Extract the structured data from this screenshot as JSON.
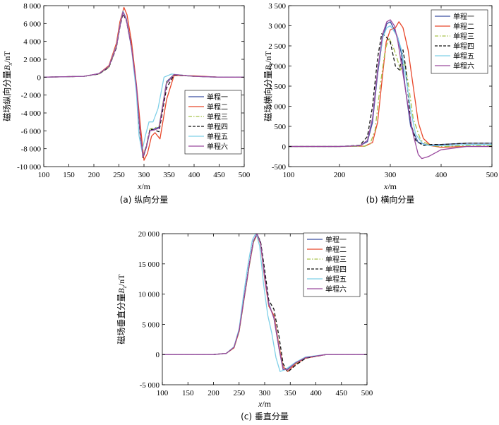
{
  "chart_data": [
    {
      "type": "line",
      "caption": "(a) 纵向分量",
      "xlabel_var": "x",
      "xlabel_unit": "/m",
      "ylabel_prefix": "磁场纵向分量",
      "ylabel_var": "B",
      "ylabel_sub": "x",
      "ylabel_unit": "/nT",
      "xlim": [
        100,
        500
      ],
      "ylim": [
        -10000,
        8000
      ],
      "xticks": [
        100,
        150,
        200,
        250,
        300,
        350,
        400,
        450,
        500
      ],
      "xtick_labels": [
        "100",
        "150",
        "200",
        "250",
        "300",
        "350",
        "400",
        "450",
        "500"
      ],
      "yticks": [
        8000,
        6000,
        4000,
        2000,
        0,
        -2000,
        -4000,
        -6000,
        -8000,
        -10000
      ],
      "ytick_labels": [
        "8 000",
        "6 000",
        "4 000",
        "2 000",
        "0",
        "-2 000",
        "-4 000",
        "-6 000",
        "-8 000",
        "-10 000"
      ],
      "legend_position": "lower-right",
      "series": [
        {
          "name": "单程一",
          "color": "#3a4fa0",
          "dash": "solid",
          "x": [
            100,
            180,
            210,
            230,
            245,
            252,
            258,
            265,
            275,
            285,
            292,
            298,
            305,
            312,
            320,
            330,
            345,
            360,
            400,
            450,
            500
          ],
          "y": [
            0,
            100,
            400,
            1200,
            3500,
            5800,
            7400,
            6500,
            3500,
            -1000,
            -6000,
            -9000,
            -7800,
            -6000,
            -5800,
            -5600,
            -500,
            300,
            100,
            0,
            0
          ]
        },
        {
          "name": "单程二",
          "color": "#e8472a",
          "dash": "solid",
          "x": [
            100,
            180,
            210,
            230,
            245,
            252,
            260,
            266,
            275,
            285,
            293,
            300,
            307,
            315,
            322,
            332,
            345,
            360,
            400,
            450,
            500
          ],
          "y": [
            0,
            100,
            400,
            1300,
            3800,
            6200,
            7800,
            7000,
            4000,
            -800,
            -5500,
            -9300,
            -8500,
            -6600,
            -6200,
            -6900,
            -2500,
            200,
            150,
            0,
            0
          ]
        },
        {
          "name": "单程三",
          "color": "#a6c24a",
          "dash": "dashdot",
          "x": [
            100,
            180,
            210,
            230,
            245,
            252,
            258,
            265,
            275,
            285,
            292,
            298,
            305,
            312,
            320,
            330,
            345,
            360,
            400,
            450,
            500
          ],
          "y": [
            0,
            100,
            350,
            1100,
            3300,
            5700,
            7300,
            6400,
            3400,
            -1100,
            -6100,
            -8800,
            -7600,
            -5800,
            -5700,
            -5500,
            -600,
            300,
            100,
            0,
            0
          ]
        },
        {
          "name": "单程四",
          "color": "#111111",
          "dash": "dashed",
          "x": [
            100,
            180,
            210,
            230,
            245,
            252,
            258,
            265,
            275,
            285,
            292,
            298,
            305,
            312,
            320,
            330,
            345,
            360,
            400,
            450,
            500
          ],
          "y": [
            0,
            100,
            350,
            1100,
            3300,
            5600,
            7100,
            6300,
            3300,
            -1200,
            -6200,
            -9000,
            -7700,
            -5800,
            -5900,
            -6100,
            -1200,
            250,
            100,
            0,
            0
          ]
        },
        {
          "name": "单程五",
          "color": "#7fd0e8",
          "dash": "solid",
          "x": [
            100,
            180,
            210,
            230,
            245,
            252,
            258,
            265,
            275,
            285,
            290,
            296,
            303,
            310,
            318,
            328,
            340,
            355,
            400,
            450,
            500
          ],
          "y": [
            0,
            100,
            400,
            1200,
            3500,
            5800,
            7400,
            6400,
            3200,
            -1800,
            -6500,
            -8300,
            -6500,
            -5000,
            -5000,
            -3500,
            0,
            350,
            100,
            0,
            0
          ]
        },
        {
          "name": "单程六",
          "color": "#9a4a9e",
          "dash": "solid",
          "x": [
            100,
            180,
            210,
            230,
            245,
            252,
            258,
            265,
            275,
            285,
            292,
            298,
            305,
            312,
            320,
            330,
            345,
            360,
            400,
            450,
            500
          ],
          "y": [
            0,
            100,
            400,
            1200,
            3400,
            5700,
            7300,
            6400,
            3300,
            -1000,
            -6000,
            -8900,
            -7700,
            -6000,
            -5900,
            -5700,
            -700,
            300,
            100,
            0,
            0
          ]
        }
      ]
    },
    {
      "type": "line",
      "caption": "(b) 横向分量",
      "xlabel_var": "x",
      "xlabel_unit": "/m",
      "ylabel_prefix": "磁场横向分量",
      "ylabel_var": "B",
      "ylabel_sub": "y",
      "ylabel_unit": "/nT",
      "xlim": [
        100,
        500
      ],
      "ylim": [
        -500,
        3500
      ],
      "xticks": [
        100,
        200,
        300,
        400,
        500
      ],
      "xtick_labels": [
        "100",
        "200",
        "300",
        "400",
        "500"
      ],
      "yticks": [
        3500,
        3000,
        2500,
        2000,
        1500,
        1000,
        500,
        0,
        -500
      ],
      "ytick_labels": [
        "3 500",
        "3 000",
        "2 500",
        "2 000",
        "1 500",
        "1 000",
        "500",
        "0",
        "-500"
      ],
      "legend_position": "top-right",
      "series": [
        {
          "name": "单程一",
          "color": "#3a4fa0",
          "dash": "solid",
          "x": [
            100,
            200,
            240,
            255,
            265,
            275,
            285,
            293,
            300,
            308,
            315,
            322,
            330,
            340,
            355,
            375,
            400,
            450,
            500
          ],
          "y": [
            0,
            0,
            20,
            120,
            600,
            1800,
            2700,
            3050,
            3100,
            2900,
            2700,
            2300,
            1400,
            500,
            100,
            30,
            50,
            80,
            80
          ]
        },
        {
          "name": "单程二",
          "color": "#e8472a",
          "dash": "solid",
          "x": [
            100,
            200,
            250,
            265,
            275,
            285,
            292,
            300,
            310,
            317,
            325,
            335,
            345,
            355,
            365,
            380,
            400,
            450,
            500
          ],
          "y": [
            0,
            0,
            10,
            100,
            600,
            1800,
            2600,
            2900,
            2950,
            3100,
            2950,
            2400,
            1500,
            600,
            200,
            20,
            -20,
            0,
            0
          ]
        },
        {
          "name": "单程三",
          "color": "#a6c24a",
          "dash": "dashdot",
          "x": [
            100,
            200,
            250,
            260,
            270,
            280,
            290,
            297,
            305,
            313,
            320,
            328,
            335,
            345,
            360,
            380,
            400,
            450,
            500
          ],
          "y": [
            0,
            0,
            5,
            60,
            400,
            1500,
            2400,
            2700,
            2500,
            2200,
            1900,
            2100,
            1600,
            700,
            150,
            20,
            0,
            20,
            20
          ]
        },
        {
          "name": "单程四",
          "color": "#111111",
          "dash": "dashed",
          "x": [
            100,
            200,
            240,
            255,
            265,
            275,
            283,
            290,
            300,
            310,
            318,
            325,
            330,
            340,
            350,
            365,
            380,
            400,
            450,
            500
          ],
          "y": [
            0,
            0,
            30,
            250,
            1000,
            2200,
            2800,
            2750,
            2600,
            2000,
            1900,
            2400,
            2000,
            600,
            150,
            20,
            50,
            50,
            80,
            80
          ]
        },
        {
          "name": "单程五",
          "color": "#7fd0e8",
          "dash": "solid",
          "x": [
            100,
            200,
            240,
            255,
            265,
            275,
            285,
            293,
            300,
            308,
            315,
            322,
            330,
            340,
            350,
            365,
            380,
            400,
            450,
            500
          ],
          "y": [
            0,
            0,
            20,
            150,
            700,
            1900,
            2700,
            2950,
            3000,
            2850,
            2700,
            2400,
            1800,
            900,
            300,
            50,
            20,
            20,
            50,
            50
          ]
        },
        {
          "name": "单程六",
          "color": "#9a4a9e",
          "dash": "solid",
          "x": [
            100,
            200,
            240,
            255,
            265,
            275,
            285,
            293,
            300,
            308,
            315,
            325,
            335,
            345,
            355,
            362,
            375,
            400,
            450,
            500
          ],
          "y": [
            0,
            0,
            20,
            150,
            700,
            1900,
            2800,
            3100,
            3150,
            3000,
            2600,
            1800,
            1000,
            300,
            -200,
            -300,
            -250,
            -80,
            0,
            0
          ]
        }
      ]
    },
    {
      "type": "line",
      "caption": "(c) 垂直分量",
      "xlabel_var": "x",
      "xlabel_unit": "/m",
      "ylabel_prefix": "磁场垂直分量",
      "ylabel_var": "B",
      "ylabel_sub": "z",
      "ylabel_unit": "/nT",
      "xlim": [
        100,
        500
      ],
      "ylim": [
        -5000,
        20000
      ],
      "xticks": [
        100,
        150,
        200,
        250,
        300,
        350,
        400,
        450,
        500
      ],
      "xtick_labels": [
        "100",
        "150",
        "200",
        "250",
        "300",
        "350",
        "400",
        "450",
        "500"
      ],
      "yticks": [
        20000,
        15000,
        10000,
        5000,
        0,
        -5000
      ],
      "ytick_labels": [
        "20 000",
        "15 000",
        "10 000",
        "5 000",
        "0",
        "-5 000"
      ],
      "legend_position": "top-right",
      "series": [
        {
          "name": "单程一",
          "color": "#3a4fa0",
          "dash": "solid",
          "x": [
            100,
            200,
            225,
            240,
            250,
            260,
            270,
            278,
            285,
            292,
            300,
            308,
            318,
            328,
            336,
            345,
            360,
            380,
            420,
            500
          ],
          "y": [
            0,
            0,
            200,
            1200,
            4000,
            9500,
            15000,
            18800,
            20000,
            18500,
            13000,
            8500,
            6000,
            1000,
            -2500,
            -2400,
            -1400,
            -500,
            0,
            0
          ]
        },
        {
          "name": "单程二",
          "color": "#e8472a",
          "dash": "solid",
          "x": [
            100,
            200,
            225,
            240,
            250,
            260,
            270,
            278,
            285,
            292,
            300,
            308,
            318,
            328,
            336,
            345,
            360,
            380,
            420,
            500
          ],
          "y": [
            0,
            0,
            200,
            1100,
            3800,
            9300,
            14800,
            18600,
            19800,
            18300,
            12500,
            8000,
            6500,
            1500,
            -2000,
            -2800,
            -1600,
            -600,
            0,
            0
          ]
        },
        {
          "name": "单程三",
          "color": "#a6c24a",
          "dash": "dashdot",
          "x": [
            100,
            200,
            225,
            240,
            250,
            260,
            270,
            278,
            285,
            292,
            300,
            308,
            318,
            328,
            336,
            345,
            360,
            380,
            420,
            500
          ],
          "y": [
            0,
            0,
            200,
            1100,
            3800,
            9300,
            14800,
            18600,
            19900,
            18300,
            12800,
            8200,
            6200,
            1200,
            -2200,
            -2500,
            -1500,
            -500,
            0,
            0
          ]
        },
        {
          "name": "单程四",
          "color": "#111111",
          "dash": "dashed",
          "x": [
            100,
            200,
            225,
            240,
            250,
            260,
            270,
            278,
            285,
            292,
            300,
            308,
            318,
            328,
            336,
            345,
            360,
            380,
            420,
            500
          ],
          "y": [
            0,
            0,
            200,
            1200,
            4000,
            9500,
            15000,
            18800,
            19900,
            18700,
            14000,
            9000,
            7500,
            3000,
            -1500,
            -2900,
            -1800,
            -600,
            0,
            0
          ]
        },
        {
          "name": "单程五",
          "color": "#7fd0e8",
          "dash": "solid",
          "x": [
            100,
            200,
            225,
            240,
            250,
            258,
            268,
            276,
            283,
            290,
            298,
            306,
            314,
            322,
            330,
            340,
            360,
            380,
            420,
            500
          ],
          "y": [
            0,
            0,
            200,
            1300,
            4300,
            9500,
            15200,
            19000,
            20100,
            18000,
            11500,
            6500,
            3500,
            -500,
            -2800,
            -2500,
            -1300,
            -400,
            0,
            0
          ]
        },
        {
          "name": "单程六",
          "color": "#9a4a9e",
          "dash": "solid",
          "x": [
            100,
            200,
            225,
            240,
            250,
            260,
            270,
            278,
            285,
            292,
            300,
            308,
            318,
            328,
            336,
            345,
            360,
            380,
            420,
            500
          ],
          "y": [
            0,
            0,
            200,
            1200,
            4000,
            9500,
            15000,
            18800,
            20000,
            18400,
            12800,
            8300,
            6100,
            1100,
            -2400,
            -2500,
            -1400,
            -500,
            0,
            0
          ]
        }
      ]
    }
  ]
}
